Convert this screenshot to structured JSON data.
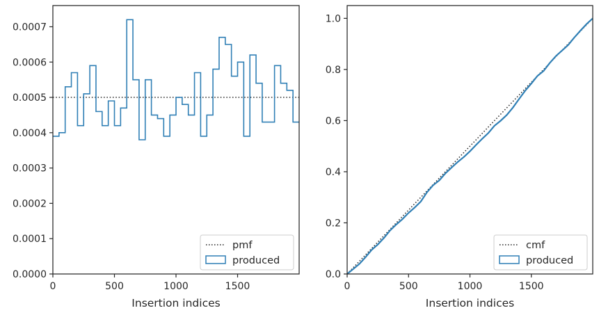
{
  "colors": {
    "produced": "#2f7fb5",
    "reference": "#222222",
    "axes": "#262626",
    "legend_border": "#cccccc"
  },
  "chart_data": [
    {
      "type": "step",
      "xlabel": "Insertion indices",
      "ylabel": "",
      "xlim": [
        0,
        2000
      ],
      "ylim": [
        0,
        0.00076
      ],
      "xticks": [
        0,
        500,
        1000,
        1500
      ],
      "yticks": [
        0,
        0.0001,
        0.0002,
        0.0003,
        0.0004,
        0.0005,
        0.0006,
        0.0007
      ],
      "xtick_labels": [
        "0",
        "500",
        "1000",
        "1500"
      ],
      "ytick_labels": [
        "0.0000",
        "0.0001",
        "0.0002",
        "0.0003",
        "0.0004",
        "0.0005",
        "0.0006",
        "0.0007"
      ],
      "legend": {
        "position": "lower right",
        "entries": [
          "pmf",
          "produced"
        ]
      },
      "series": [
        {
          "name": "pmf",
          "style": "dotted",
          "x": [
            0,
            2000
          ],
          "y": [
            0.0005,
            0.0005
          ]
        },
        {
          "name": "produced",
          "style": "step",
          "bin_width": 50,
          "bin_starts": [
            0,
            50,
            100,
            150,
            200,
            250,
            300,
            350,
            400,
            450,
            500,
            550,
            600,
            650,
            700,
            750,
            800,
            850,
            900,
            950,
            1000,
            1050,
            1100,
            1150,
            1200,
            1250,
            1300,
            1350,
            1400,
            1450,
            1500,
            1550,
            1600,
            1650,
            1700,
            1750,
            1800,
            1850,
            1900,
            1950
          ],
          "values": [
            0.00039,
            0.0004,
            0.00053,
            0.00057,
            0.00042,
            0.00051,
            0.00059,
            0.00046,
            0.00042,
            0.00049,
            0.00042,
            0.00047,
            0.00072,
            0.00055,
            0.00038,
            0.00055,
            0.00045,
            0.00044,
            0.00039,
            0.00045,
            0.0005,
            0.00048,
            0.00045,
            0.00057,
            0.00039,
            0.00045,
            0.00058,
            0.00067,
            0.00065,
            0.00056,
            0.0006,
            0.00039,
            0.00062,
            0.00054,
            0.00043,
            0.00043,
            0.00059,
            0.00054,
            0.00052,
            0.00043
          ]
        }
      ]
    },
    {
      "type": "line",
      "xlabel": "Insertion indices",
      "ylabel": "",
      "xlim": [
        0,
        2000
      ],
      "ylim": [
        0,
        1.05
      ],
      "xticks": [
        0,
        500,
        1000,
        1500
      ],
      "yticks": [
        0,
        0.2,
        0.4,
        0.6,
        0.8,
        1.0
      ],
      "xtick_labels": [
        "0",
        "500",
        "1000",
        "1500"
      ],
      "ytick_labels": [
        "0.0",
        "0.2",
        "0.4",
        "0.6",
        "0.8",
        "1.0"
      ],
      "legend": {
        "position": "lower right",
        "entries": [
          "cmf",
          "produced"
        ]
      },
      "series": [
        {
          "name": "cmf",
          "style": "dotted",
          "x": [
            0,
            2000
          ],
          "y": [
            0,
            1.0
          ]
        },
        {
          "name": "produced",
          "style": "line",
          "x": [
            0,
            50,
            100,
            150,
            200,
            250,
            300,
            350,
            400,
            450,
            500,
            550,
            600,
            650,
            700,
            750,
            800,
            850,
            900,
            950,
            1000,
            1050,
            1100,
            1150,
            1200,
            1250,
            1300,
            1350,
            1400,
            1450,
            1500,
            1550,
            1600,
            1650,
            1700,
            1750,
            1800,
            1850,
            1900,
            1950,
            2000
          ],
          "y": [
            0,
            0.0195,
            0.0395,
            0.066,
            0.0945,
            0.1155,
            0.141,
            0.1705,
            0.1935,
            0.2145,
            0.239,
            0.26,
            0.2835,
            0.3195,
            0.347,
            0.366,
            0.3935,
            0.416,
            0.438,
            0.4575,
            0.48,
            0.505,
            0.529,
            0.5515,
            0.58,
            0.5995,
            0.622,
            0.651,
            0.6845,
            0.717,
            0.745,
            0.775,
            0.7945,
            0.8255,
            0.8525,
            0.874,
            0.8955,
            0.925,
            0.952,
            0.978,
            1.0
          ]
        }
      ]
    }
  ]
}
